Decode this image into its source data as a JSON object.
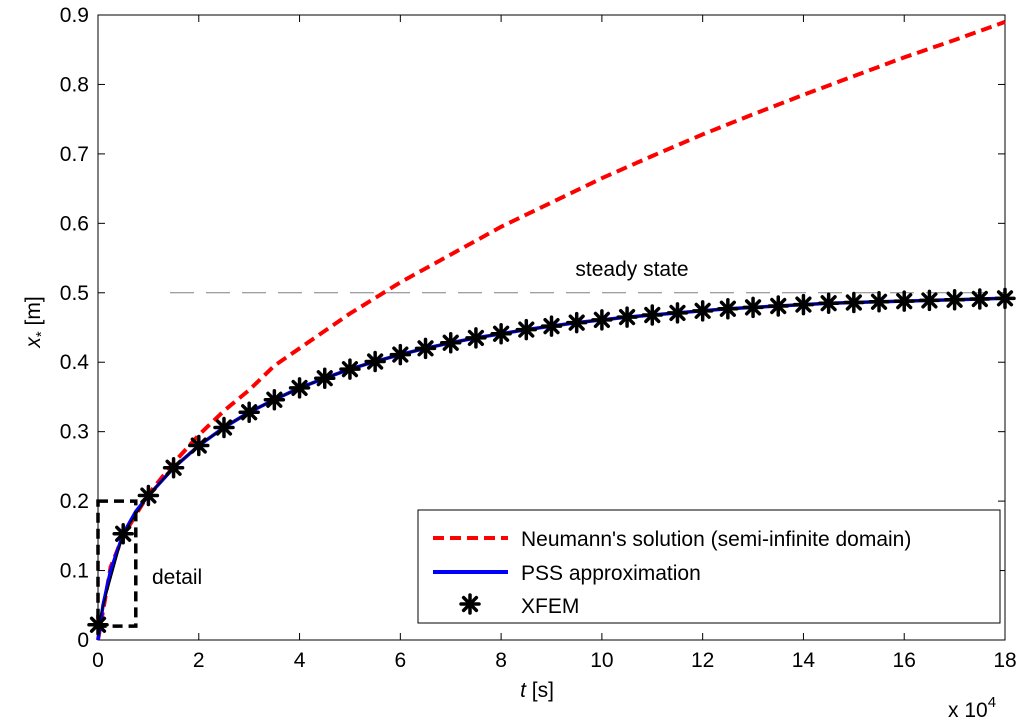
{
  "chart_data": {
    "type": "line",
    "title": "",
    "xlabel": {
      "symbol": "t",
      "unit": "[s]"
    },
    "ylabel": {
      "symbol": "x",
      "subscript": "*",
      "unit": "[m]"
    },
    "x_multiplier": {
      "base": "x 10",
      "exponent": "4"
    },
    "xlim": [
      0,
      18
    ],
    "ylim": [
      0,
      0.9
    ],
    "xticks": [
      0,
      2,
      4,
      6,
      8,
      10,
      12,
      14,
      16,
      18
    ],
    "yticks": [
      0,
      0.1,
      0.2,
      0.3,
      0.4,
      0.5,
      0.6,
      0.7,
      0.8,
      0.9
    ],
    "xtick_labels": [
      "0",
      "2",
      "4",
      "6",
      "8",
      "10",
      "12",
      "14",
      "16",
      "18"
    ],
    "ytick_labels": [
      "0",
      "0.1",
      "0.2",
      "0.3",
      "0.4",
      "0.5",
      "0.6",
      "0.7",
      "0.8",
      "0.9"
    ],
    "grid": false,
    "legend_position": "bottom-right",
    "series": [
      {
        "name": "Neumann's solution (semi-infinite domain)",
        "style": "dashed",
        "color": "#ff0000",
        "x": [
          0,
          0.25,
          0.5,
          1,
          1.5,
          2,
          2.5,
          3,
          3.5,
          4,
          5,
          6,
          7,
          8,
          9,
          10,
          11,
          12,
          13,
          14,
          15,
          16,
          17,
          18
        ],
        "y": [
          0.0,
          0.105,
          0.15,
          0.21,
          0.255,
          0.295,
          0.33,
          0.36,
          0.395,
          0.42,
          0.47,
          0.515,
          0.555,
          0.595,
          0.63,
          0.665,
          0.697,
          0.728,
          0.757,
          0.785,
          0.812,
          0.839,
          0.864,
          0.89
        ]
      },
      {
        "name": "PSS approximation",
        "style": "solid",
        "color": "#0000ff",
        "x": [
          0,
          0.1,
          0.25,
          0.5,
          0.75,
          1,
          1.5,
          2,
          2.5,
          3,
          3.5,
          4,
          4.5,
          5,
          5.5,
          6,
          6.5,
          7,
          7.5,
          8,
          8.5,
          9,
          9.5,
          10,
          10.5,
          11,
          11.5,
          12,
          12.5,
          13,
          13.5,
          14,
          14.5,
          15,
          15.5,
          16,
          16.5,
          17,
          17.5,
          18
        ],
        "y": [
          0.0,
          0.05,
          0.1,
          0.153,
          0.185,
          0.208,
          0.248,
          0.28,
          0.306,
          0.328,
          0.346,
          0.363,
          0.377,
          0.39,
          0.401,
          0.411,
          0.42,
          0.428,
          0.435,
          0.441,
          0.447,
          0.452,
          0.457,
          0.461,
          0.465,
          0.468,
          0.471,
          0.474,
          0.477,
          0.479,
          0.481,
          0.483,
          0.485,
          0.486,
          0.487,
          0.488,
          0.489,
          0.49,
          0.491,
          0.492
        ]
      },
      {
        "name": "XFEM",
        "style": "markers",
        "color": "#000000",
        "x": [
          0,
          0.5,
          1,
          1.5,
          2,
          2.5,
          3,
          3.5,
          4,
          4.5,
          5,
          5.5,
          6,
          6.5,
          7,
          7.5,
          8,
          8.5,
          9,
          9.5,
          10,
          10.5,
          11,
          11.5,
          12,
          12.5,
          13,
          13.5,
          14,
          14.5,
          15,
          15.5,
          16,
          16.5,
          17,
          17.5,
          18
        ],
        "y": [
          0.022,
          0.153,
          0.208,
          0.248,
          0.28,
          0.306,
          0.328,
          0.346,
          0.363,
          0.377,
          0.39,
          0.401,
          0.411,
          0.42,
          0.428,
          0.435,
          0.441,
          0.447,
          0.452,
          0.457,
          0.461,
          0.465,
          0.468,
          0.471,
          0.474,
          0.477,
          0.479,
          0.481,
          0.483,
          0.485,
          0.486,
          0.487,
          0.488,
          0.489,
          0.49,
          0.491,
          0.492
        ]
      }
    ],
    "reference_line": {
      "y": 0.5,
      "label": "steady state",
      "style": "long-dash",
      "color": "#808080"
    },
    "detail_box": {
      "x_range": [
        0,
        0.75
      ],
      "y_range": [
        0.02,
        0.2
      ],
      "label": "detail"
    }
  }
}
